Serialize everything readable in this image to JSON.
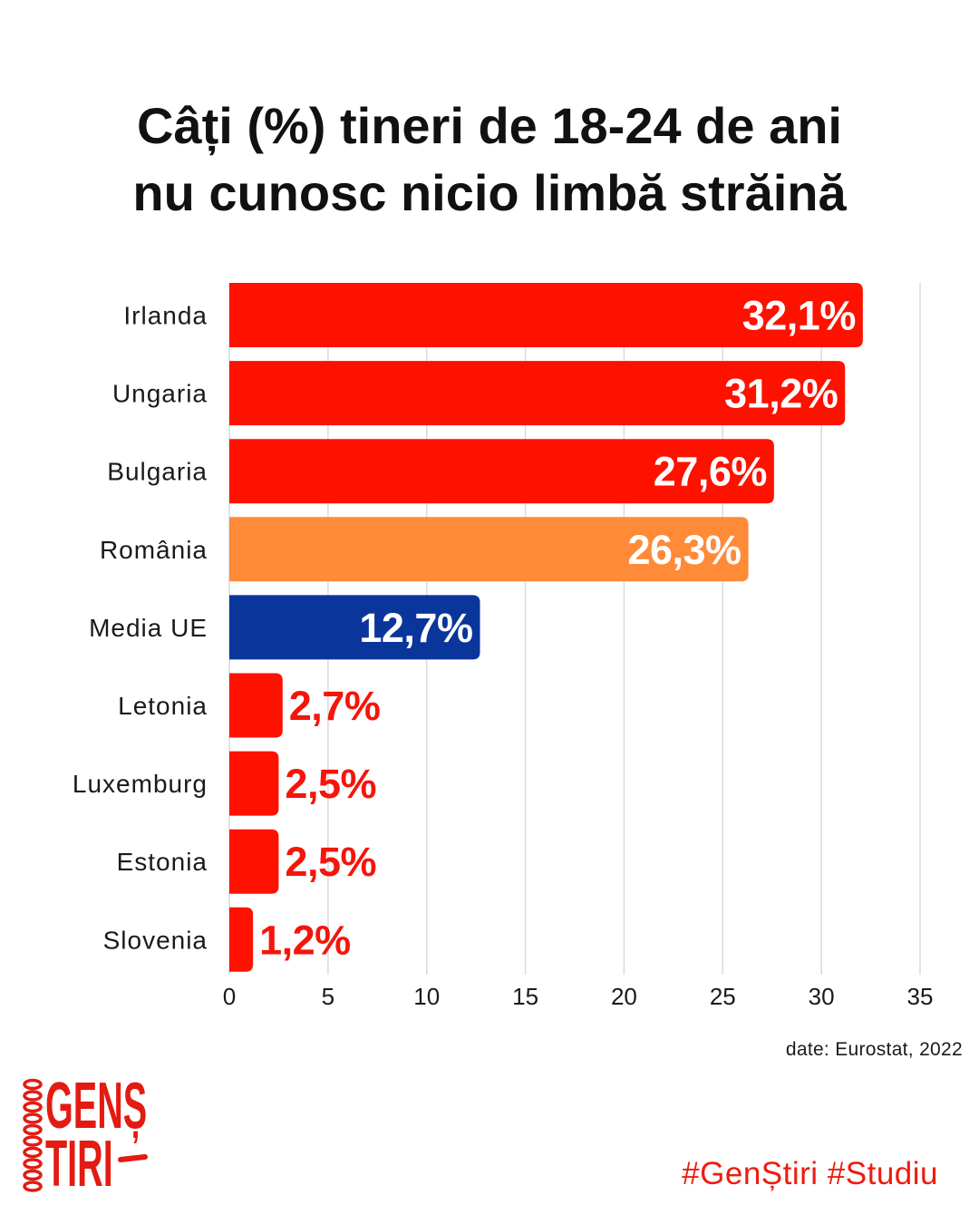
{
  "chart_data": {
    "type": "bar",
    "title": [
      "Câți (%) tineri de 18-24 de ani",
      "nu cunosc nicio limbă străină"
    ],
    "categories": [
      "Irlanda",
      "Ungaria",
      "Bulgaria",
      "România",
      "Media UE",
      "Letonia",
      "Luxemburg",
      "Estonia",
      "Slovenia"
    ],
    "values": [
      32.1,
      31.2,
      27.6,
      26.3,
      12.7,
      2.7,
      2.5,
      2.5,
      1.2
    ],
    "value_labels": [
      "32,1%",
      "31,2%",
      "27,6%",
      "26,3%",
      "12,7%",
      "2,7%",
      "2,5%",
      "2,5%",
      "1,2%"
    ],
    "bar_colors": [
      "#ff1100",
      "#ff1100",
      "#ff1100",
      "#ff8a38",
      "#0a359b",
      "#ff1100",
      "#ff1100",
      "#ff1100",
      "#ff1100"
    ],
    "label_inside_color": "#ffffff",
    "label_outside_color": "#f5150b",
    "grid_color": "#dadada",
    "grid": true,
    "xlim": [
      0,
      35
    ],
    "xticks": [
      0,
      5,
      10,
      15,
      20,
      25,
      30,
      35
    ],
    "xtick_labels": [
      "0",
      "5",
      "10",
      "15",
      "20",
      "25",
      "30",
      "35"
    ],
    "source": "date: Eurostat, 2022"
  },
  "branding": {
    "hashtags": "#GenȘtiri #Studiu",
    "logo_line1": "GENȘ",
    "logo_line2": "TIRI",
    "accent_color": "#e31b12"
  }
}
